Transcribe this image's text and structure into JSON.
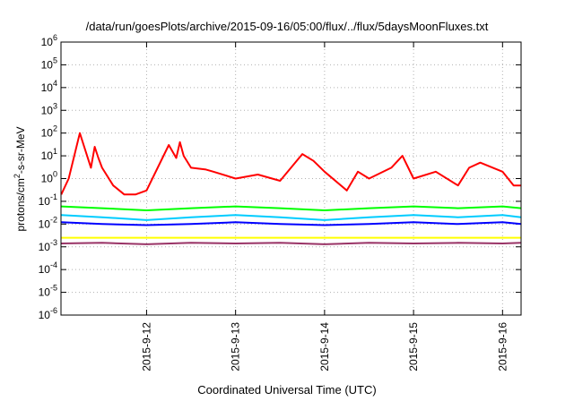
{
  "chart_data": {
    "type": "line",
    "title": "/data/run/goesPlots/archive/2015-09-16/05:00/flux/../flux/5daysMoonFluxes.txt",
    "xlabel": "Coordinated Universal Time (UTC)",
    "ylabel": "protons/cm2-s-sr-MeV",
    "y_scale": "log",
    "ylim": [
      1e-06,
      1000000.0
    ],
    "y_ticks": [
      {
        "exp": "-6"
      },
      {
        "exp": "-5"
      },
      {
        "exp": "-4"
      },
      {
        "exp": "-3"
      },
      {
        "exp": "-2"
      },
      {
        "exp": "-1"
      },
      {
        "exp": "0"
      },
      {
        "exp": "1"
      },
      {
        "exp": "2"
      },
      {
        "exp": "3"
      },
      {
        "exp": "4"
      },
      {
        "exp": "5"
      },
      {
        "exp": "6"
      }
    ],
    "xlim": [
      "2015-09-11T00:55",
      "2015-09-16T05:00"
    ],
    "x_ticks": [
      "2015-9-12",
      "2015-9-13",
      "2015-9-14",
      "2015-9-15",
      "2015-9-16"
    ],
    "grid": true,
    "series": [
      {
        "color": "#ff0000",
        "x": [
          "2015-09-11T01:00",
          "2015-09-11T03:00",
          "2015-09-11T06:00",
          "2015-09-11T09:00",
          "2015-09-11T10:00",
          "2015-09-11T11:00",
          "2015-09-11T12:00",
          "2015-09-11T15:00",
          "2015-09-11T18:00",
          "2015-09-11T21:00",
          "2015-09-12T00:00",
          "2015-09-12T06:00",
          "2015-09-12T08:00",
          "2015-09-12T09:00",
          "2015-09-12T10:00",
          "2015-09-12T12:00",
          "2015-09-12T16:00",
          "2015-09-12T18:00",
          "2015-09-13T00:00",
          "2015-09-13T06:00",
          "2015-09-13T12:00",
          "2015-09-13T18:00",
          "2015-09-13T21:00",
          "2015-09-14T00:00",
          "2015-09-14T06:00",
          "2015-09-14T09:00",
          "2015-09-14T12:00",
          "2015-09-14T18:00",
          "2015-09-14T21:00",
          "2015-09-15T00:00",
          "2015-09-15T06:00",
          "2015-09-15T12:00",
          "2015-09-15T15:00",
          "2015-09-15T18:00",
          "2015-09-16T00:00",
          "2015-09-16T03:00",
          "2015-09-16T05:00"
        ],
        "y": [
          0.2,
          1.0,
          100,
          3,
          25,
          8,
          3,
          0.5,
          0.2,
          0.2,
          0.3,
          30,
          8,
          40,
          10,
          3,
          2.5,
          2,
          1,
          1.5,
          0.8,
          12,
          6,
          2,
          0.3,
          2,
          1,
          3,
          10,
          1,
          2,
          0.5,
          3,
          5,
          2,
          0.5,
          0.5
        ]
      },
      {
        "color": "#00ff00",
        "x": [
          "2015-09-11T01:00",
          "2015-09-11T12:00",
          "2015-09-12T00:00",
          "2015-09-12T12:00",
          "2015-09-13T00:00",
          "2015-09-13T12:00",
          "2015-09-14T00:00",
          "2015-09-14T12:00",
          "2015-09-15T00:00",
          "2015-09-15T12:00",
          "2015-09-16T00:00",
          "2015-09-16T05:00"
        ],
        "y": [
          0.06,
          0.05,
          0.04,
          0.05,
          0.06,
          0.05,
          0.04,
          0.05,
          0.06,
          0.05,
          0.06,
          0.05
        ]
      },
      {
        "color": "#00ccff",
        "x": [
          "2015-09-11T01:00",
          "2015-09-11T12:00",
          "2015-09-12T00:00",
          "2015-09-12T12:00",
          "2015-09-13T00:00",
          "2015-09-13T12:00",
          "2015-09-14T00:00",
          "2015-09-14T12:00",
          "2015-09-15T00:00",
          "2015-09-15T12:00",
          "2015-09-16T00:00",
          "2015-09-16T05:00"
        ],
        "y": [
          0.025,
          0.02,
          0.015,
          0.02,
          0.025,
          0.02,
          0.015,
          0.02,
          0.025,
          0.02,
          0.025,
          0.02
        ]
      },
      {
        "color": "#0000ff",
        "x": [
          "2015-09-11T01:00",
          "2015-09-11T12:00",
          "2015-09-12T00:00",
          "2015-09-12T12:00",
          "2015-09-13T00:00",
          "2015-09-13T12:00",
          "2015-09-14T00:00",
          "2015-09-14T12:00",
          "2015-09-15T00:00",
          "2015-09-15T12:00",
          "2015-09-16T00:00",
          "2015-09-16T05:00"
        ],
        "y": [
          0.012,
          0.01,
          0.009,
          0.01,
          0.012,
          0.01,
          0.009,
          0.01,
          0.012,
          0.01,
          0.012,
          0.01
        ]
      },
      {
        "color": "#ffff00",
        "x": [
          "2015-09-11T01:00",
          "2015-09-11T12:00",
          "2015-09-12T00:00",
          "2015-09-12T12:00",
          "2015-09-13T00:00",
          "2015-09-13T12:00",
          "2015-09-14T00:00",
          "2015-09-14T12:00",
          "2015-09-15T00:00",
          "2015-09-15T12:00",
          "2015-09-16T00:00",
          "2015-09-16T05:00"
        ],
        "y": [
          0.0025,
          0.0025,
          0.0025,
          0.0025,
          0.0025,
          0.0025,
          0.0025,
          0.0025,
          0.0025,
          0.0025,
          0.0025,
          0.0025
        ]
      },
      {
        "color": "#993366",
        "x": [
          "2015-09-11T01:00",
          "2015-09-11T12:00",
          "2015-09-12T00:00",
          "2015-09-12T12:00",
          "2015-09-13T00:00",
          "2015-09-13T12:00",
          "2015-09-14T00:00",
          "2015-09-14T12:00",
          "2015-09-15T00:00",
          "2015-09-15T12:00",
          "2015-09-16T00:00",
          "2015-09-16T05:00"
        ],
        "y": [
          0.0014,
          0.0015,
          0.0013,
          0.0015,
          0.0014,
          0.0015,
          0.0013,
          0.0015,
          0.0014,
          0.0015,
          0.0014,
          0.0015
        ]
      }
    ]
  }
}
